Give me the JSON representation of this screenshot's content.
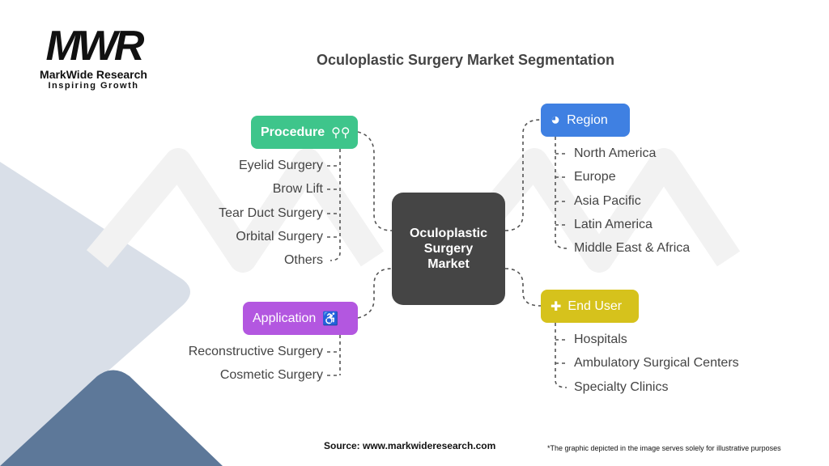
{
  "logo": {
    "mark": "MWR",
    "name": "MarkWide Research",
    "tagline": "Inspiring Growth"
  },
  "title": "Oculoplastic Surgery Market Segmentation",
  "center": {
    "line1": "Oculoplastic",
    "line2": "Surgery",
    "line3": "Market"
  },
  "colors": {
    "procedure": "#3ec58b",
    "region": "#3f80e2",
    "application": "#b357e0",
    "end_user": "#d6c21c",
    "center": "#454545"
  },
  "segments": {
    "procedure": {
      "label": "Procedure",
      "icon": "surgical-tools-icon",
      "items": [
        "Eyelid Surgery",
        "Brow Lift",
        "Tear Duct Surgery",
        "Orbital Surgery",
        "Others"
      ]
    },
    "application": {
      "label": "Application",
      "icon": "patient-care-icon",
      "items": [
        "Reconstructive Surgery",
        "Cosmetic Surgery"
      ]
    },
    "region": {
      "label": "Region",
      "icon": "globe-icon",
      "items": [
        "North America",
        "Europe",
        "Asia Pacific",
        "Latin America",
        "Middle East & Africa"
      ]
    },
    "end_user": {
      "label": "End User",
      "icon": "hospital-bed-icon",
      "items": [
        "Hospitals",
        "Ambulatory Surgical Centers",
        "Specialty Clinics"
      ]
    }
  },
  "footer": {
    "source": "Source: www.markwideresearch.com",
    "disclaimer": "*The graphic depicted in the image serves solely for illustrative purposes"
  }
}
